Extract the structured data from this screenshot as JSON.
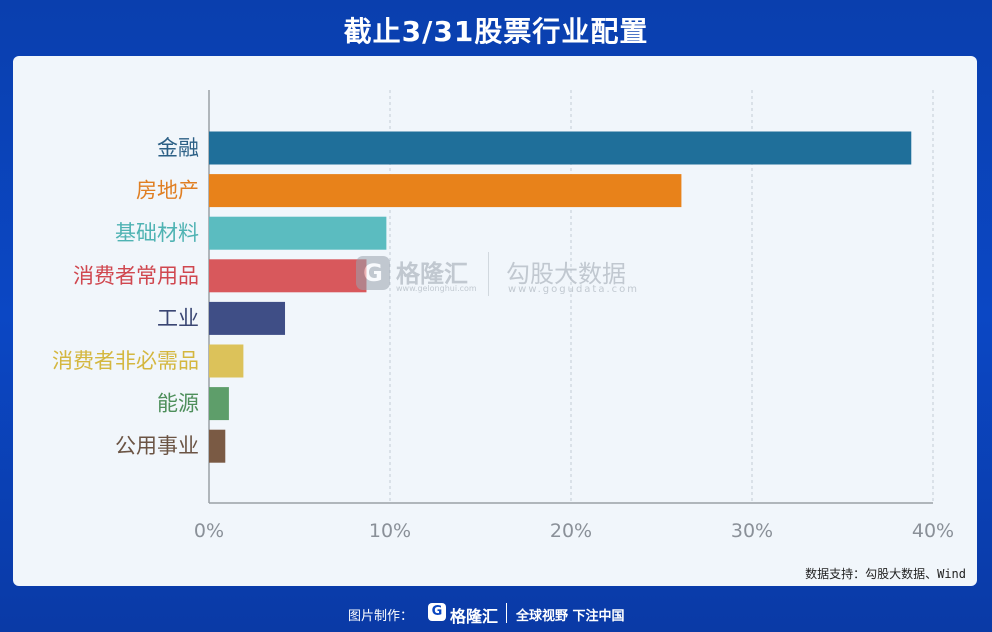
{
  "title": "截止3/31股票行业配置",
  "source": "数据支持：勾股大数据、Wind",
  "watermark": {
    "logo_glyph": "G",
    "brand": "格隆汇",
    "brand_url": "www.gelonghui.com",
    "gogu": "勾股大数据",
    "gogu_url": "www.gogudata.com"
  },
  "footer": {
    "made_by": "图片制作：",
    "logo_glyph": "G",
    "brand": "格隆汇",
    "slogan": "全球视野 下注中国"
  },
  "chart_data": {
    "type": "bar",
    "orientation": "horizontal",
    "title": "截止3/31股票行业配置",
    "categories": [
      "金融",
      "房地产",
      "基础材料",
      "消费者常用品",
      "工业",
      "消费者非必需品",
      "能源",
      "公用事业"
    ],
    "values": [
      38.8,
      26.1,
      9.8,
      8.7,
      4.2,
      1.9,
      1.1,
      0.9
    ],
    "colors": [
      "#1f6f9a",
      "#e8821a",
      "#5bbcc0",
      "#d8585c",
      "#3f4e86",
      "#dcc25a",
      "#5e9e6a",
      "#7a5a44"
    ],
    "label_colors": [
      "#2b5f85",
      "#e07f23",
      "#4fb3b3",
      "#d0474f",
      "#3a4673",
      "#d4b73f",
      "#4e8f5b",
      "#6b5444"
    ],
    "xlim": [
      0,
      40
    ],
    "xticks": [
      "0%",
      "10%",
      "20%",
      "30%",
      "40%"
    ],
    "grid": true,
    "xlabel": "",
    "ylabel": ""
  }
}
